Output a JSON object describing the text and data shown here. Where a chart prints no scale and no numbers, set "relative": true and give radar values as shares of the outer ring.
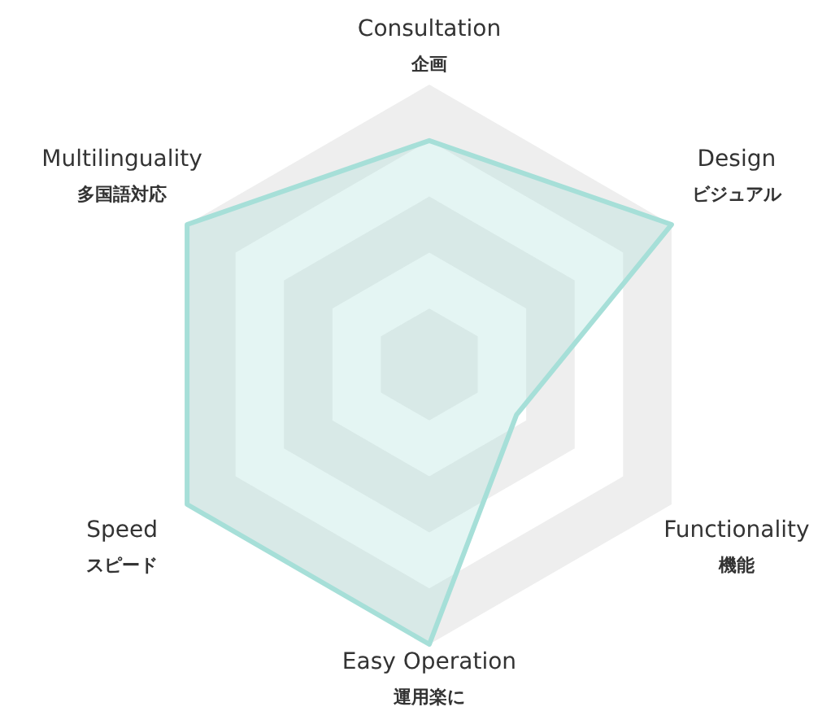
{
  "chart_data": {
    "type": "radar",
    "relative": true,
    "grid": true,
    "categories": [
      "Consultation\n企画",
      "Design\nビジュアル",
      "Functionality\n機能",
      "Easy Operation\n運用楽に",
      "Speed\nスピード",
      "Multilinguality\n多国語対応"
    ],
    "series": [
      {
        "color": "#a6dfd8",
        "values": [
          0.8,
          1,
          0.36,
          1,
          1,
          1
        ]
      }
    ]
  }
}
